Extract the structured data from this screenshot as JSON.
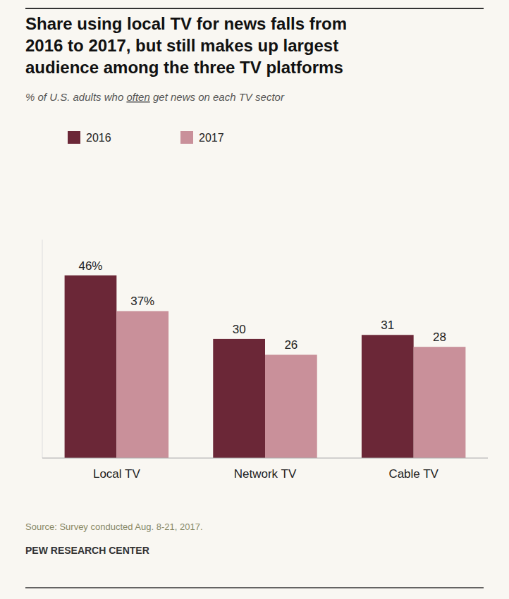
{
  "chart_data": {
    "type": "bar",
    "title": [
      "Share using local TV for news falls from",
      "2016 to 2017, but still makes up largest",
      "audience among the three TV platforms"
    ],
    "subtitle": [
      "% of U.S. adults who ",
      "often",
      " get news on each TV sector"
    ],
    "annotations": [
      "Source: Survey conducted Aug. 8-21, 2017.",
      "PEW RESEARCH CENTER"
    ],
    "categories": [
      "Local TV",
      "Network TV",
      "Cable TV"
    ],
    "series": [
      {
        "name": "2016",
        "color": "#6b2737",
        "values": [
          46,
          30,
          31
        ],
        "value_labels": [
          "46%",
          "30",
          "31"
        ]
      },
      {
        "name": "2017",
        "color": "#c9909a",
        "values": [
          37,
          26,
          28
        ],
        "value_labels": [
          "37%",
          "26",
          "28"
        ]
      }
    ],
    "ylim": [
      0,
      55
    ],
    "data_labels": true,
    "tick_labels": "x",
    "legend": "top-left",
    "grid": false
  }
}
